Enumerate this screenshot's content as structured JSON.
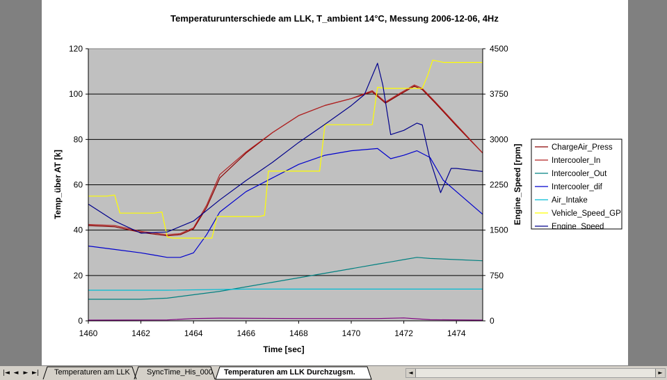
{
  "chart_data": {
    "type": "line",
    "title": "Temperaturunterschiede am LLK, T_ambient 14°C,  Messung 2006-12-06, 4Hz",
    "xlabel": "Time [sec]",
    "ylabel": "Temp_über AT [k]",
    "y2label": "Engine_Speed [rpm]",
    "xlim": [
      1460,
      1475
    ],
    "ylim": [
      0,
      120
    ],
    "y2lim": [
      0,
      4500
    ],
    "xticks": [
      "1460",
      "1462",
      "1464",
      "1466",
      "1468",
      "1470",
      "1472",
      "1474"
    ],
    "yticks": [
      "0",
      "20",
      "40",
      "60",
      "80",
      "100",
      "120"
    ],
    "y2ticks": [
      "0",
      "750",
      "1500",
      "2250",
      "3000",
      "3750",
      "4500"
    ],
    "grid": true,
    "plot_background": "#c0c0c0",
    "legend_position": "right",
    "series": [
      {
        "name": "ChargeAir_Press",
        "color": "#8b0000",
        "axis": "left",
        "x": [
          1460,
          1461,
          1462,
          1463,
          1463.5,
          1464,
          1464.5,
          1465,
          1466,
          1467,
          1468,
          1469,
          1470,
          1470.8,
          1471.3,
          1471.8,
          1472.4,
          1472.7,
          1473.2,
          1474,
          1475
        ],
        "y": [
          42,
          41.5,
          39,
          37.5,
          38,
          40.5,
          50,
          63,
          74,
          83,
          90.5,
          95,
          98,
          101,
          96,
          99.5,
          103.5,
          102,
          96,
          86,
          74
        ]
      },
      {
        "name": "Intercooler_In",
        "color": "#b22222",
        "axis": "left",
        "x": [
          1460,
          1461,
          1462,
          1463,
          1463.5,
          1464,
          1464.5,
          1465,
          1466,
          1467,
          1468,
          1469,
          1470,
          1470.8,
          1471.3,
          1471.8,
          1472.4,
          1472.7,
          1473.2,
          1474,
          1475
        ],
        "y": [
          42.5,
          42,
          39.5,
          38,
          38.5,
          41,
          51,
          64.5,
          74.5,
          83,
          90.5,
          95,
          98,
          101.5,
          96.5,
          100,
          104,
          102.5,
          96.5,
          86.5,
          74
        ]
      },
      {
        "name": "Intercooler_Out",
        "color": "#008080",
        "axis": "left",
        "x": [
          1460,
          1461,
          1462,
          1463,
          1464,
          1465,
          1466,
          1467,
          1468,
          1469,
          1470,
          1471,
          1471.5,
          1472,
          1472.5,
          1473,
          1474,
          1475
        ],
        "y": [
          9.5,
          9.5,
          9.5,
          10,
          11.5,
          13,
          15,
          17,
          19,
          21,
          23,
          25,
          26,
          27,
          28,
          27.5,
          27,
          26.5
        ]
      },
      {
        "name": "Intercooler_dif",
        "color": "#0000cd",
        "axis": "left",
        "x": [
          1460,
          1461,
          1462,
          1462.5,
          1463,
          1463.5,
          1464,
          1464.5,
          1465,
          1466,
          1467,
          1468,
          1469,
          1470,
          1470.5,
          1471,
          1471.5,
          1472,
          1472.5,
          1473,
          1473.5,
          1474,
          1475
        ],
        "y": [
          33,
          31.5,
          30,
          29,
          28,
          28,
          30,
          38,
          48,
          57,
          63,
          69,
          73,
          75,
          75.5,
          76,
          71.5,
          73,
          75,
          72,
          62,
          57,
          47
        ]
      },
      {
        "name": "Air_Intake",
        "color": "#00bcd4",
        "axis": "left",
        "x": [
          1460,
          1463,
          1466,
          1468,
          1470,
          1472,
          1475
        ],
        "y": [
          13.5,
          13.5,
          14,
          14,
          14,
          14,
          14
        ]
      },
      {
        "name": "Vehicle_Speed_GPS",
        "color": "#ffff00",
        "axis": "left",
        "x": [
          1460,
          1460.7,
          1461,
          1461.2,
          1462.5,
          1462.8,
          1463,
          1463.2,
          1464,
          1464.5,
          1464.7,
          1464.9,
          1465.5,
          1466.5,
          1466.7,
          1466.85,
          1467.5,
          1468.2,
          1468.8,
          1469,
          1469.2,
          1470,
          1470.6,
          1470.8,
          1471,
          1471.3,
          1472.3,
          1472.7,
          1472.9,
          1473.1,
          1473.5,
          1475
        ],
        "y": [
          55,
          55,
          55.5,
          47.5,
          47.5,
          48,
          37,
          36.5,
          36.5,
          36.5,
          36.5,
          46,
          46,
          46,
          46.5,
          66,
          66,
          66,
          66,
          86.5,
          86.5,
          86.5,
          86.5,
          86.5,
          103,
          102.5,
          102.5,
          102.5,
          108,
          115,
          114,
          114
        ]
      },
      {
        "name": "Engine_Speed",
        "color": "#00008b",
        "axis": "right",
        "x": [
          1460,
          1461,
          1462,
          1463,
          1464,
          1465,
          1466,
          1467,
          1468,
          1469,
          1470,
          1470.5,
          1471,
          1471.2,
          1471.5,
          1472,
          1472.5,
          1472.7,
          1473,
          1473.4,
          1473.8,
          1474,
          1475
        ],
        "y": [
          1930,
          1650,
          1450,
          1470,
          1650,
          2000,
          2320,
          2620,
          2950,
          3250,
          3560,
          3740,
          4260,
          3900,
          3080,
          3150,
          3270,
          3240,
          2660,
          2120,
          2520,
          2520,
          2470
        ]
      },
      {
        "name": "",
        "color": "#800080",
        "axis": "left",
        "x": [
          1460,
          1463,
          1464,
          1465,
          1468,
          1471,
          1472,
          1473,
          1475
        ],
        "y": [
          0.3,
          0.4,
          1,
          1.2,
          1,
          1,
          1.3,
          0.5,
          0.3
        ]
      }
    ]
  },
  "sheet_tabs": {
    "nav": [
      "|◄",
      "◄",
      "►",
      "►|"
    ],
    "tabs": [
      {
        "label": "Temperaturen am LLK",
        "active": false
      },
      {
        "label": "SyncTime_His_000",
        "active": false
      },
      {
        "label": "Temperaturen am LLK Durchzugsm.",
        "active": true
      }
    ]
  },
  "scrollbar": {
    "left_arrow": "◄",
    "right_arrow": "►"
  }
}
